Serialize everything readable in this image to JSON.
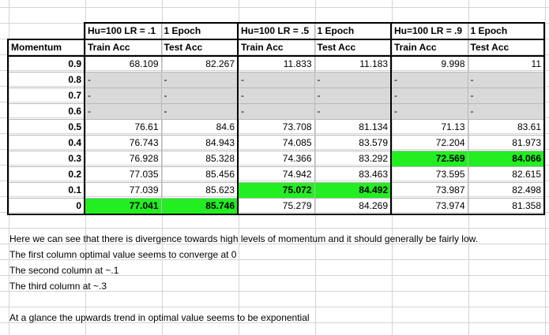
{
  "groups": [
    {
      "title": "Hu=100 LR = .1",
      "epoch": "1 Epoch"
    },
    {
      "title": "Hu=100 LR = .5",
      "epoch": "1 Epoch"
    },
    {
      "title": "Hu=100 LR = .9",
      "epoch": "1 Epoch"
    }
  ],
  "headers": [
    "Momentum",
    "Train Acc",
    "Test Acc",
    "Train Acc",
    "Test Acc",
    "Train Acc",
    "Test Acc"
  ],
  "rows": [
    {
      "m": "0.9",
      "v": [
        "68.109",
        "82.267",
        "11.833",
        "11.183",
        "9.998",
        "11"
      ]
    },
    {
      "m": "0.8",
      "v": [
        "-",
        "-",
        "-",
        "-",
        "-",
        "-"
      ]
    },
    {
      "m": "0.7",
      "v": [
        "-",
        "-",
        "-",
        "-",
        "-",
        "-"
      ]
    },
    {
      "m": "0.6",
      "v": [
        "-",
        "-",
        "-",
        "-",
        "-",
        "-"
      ]
    },
    {
      "m": "0.5",
      "v": [
        "76.61",
        "84.6",
        "73.708",
        "81.134",
        "71.13",
        "83.61"
      ]
    },
    {
      "m": "0.4",
      "v": [
        "76.743",
        "84.943",
        "74.085",
        "83.579",
        "72.204",
        "81.973"
      ]
    },
    {
      "m": "0.3",
      "v": [
        "76.928",
        "85.328",
        "74.366",
        "83.292",
        "72.569",
        "84.066"
      ]
    },
    {
      "m": "0.2",
      "v": [
        "77.035",
        "85.456",
        "74.942",
        "83.463",
        "73.595",
        "82.615"
      ]
    },
    {
      "m": "0.1",
      "v": [
        "77.039",
        "85.623",
        "75.072",
        "84.492",
        "73.987",
        "82.498"
      ]
    },
    {
      "m": "0",
      "v": [
        "77.041",
        "85.746",
        "75.279",
        "84.269",
        "73.974",
        "81.358"
      ]
    }
  ],
  "notes": [
    "Here we can see that there is divergence towards high levels of momentum and it should generally be fairly low.",
    "The first column optimal value seems to converge at 0",
    "The second column at ~.1",
    "The third column at ~.3",
    "",
    "At a glance the upwards trend in optimal value seems to be exponential"
  ],
  "colors": {
    "highlight": "#22ee22",
    "na_fill": "#d9d9d9",
    "border": "#000000"
  }
}
